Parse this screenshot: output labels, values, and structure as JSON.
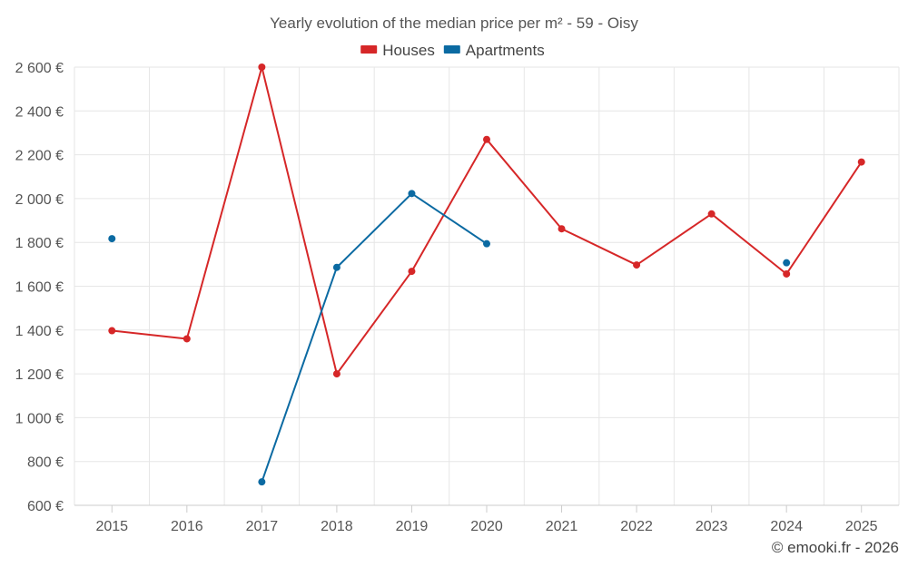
{
  "chart_data": {
    "type": "line",
    "title": "Yearly evolution of the median price per m² - 59 - Oisy",
    "x": [
      "2015",
      "2016",
      "2017",
      "2018",
      "2019",
      "2020",
      "2021",
      "2022",
      "2023",
      "2024",
      "2025"
    ],
    "ylim": [
      600,
      2600
    ],
    "yticks": [
      600,
      800,
      1000,
      1200,
      1400,
      1600,
      1800,
      2000,
      2200,
      2400,
      2600
    ],
    "ytick_labels": [
      "600 €",
      "800 €",
      "1 000 €",
      "1 200 €",
      "1 400 €",
      "1 600 €",
      "1 800 €",
      "2 000 €",
      "2 200 €",
      "2 400 €",
      "2 600 €"
    ],
    "grid": true,
    "legend_position": "top-center",
    "series": [
      {
        "name": "Houses",
        "color": "#d62728",
        "values": [
          1397,
          1360,
          2600,
          1200,
          1668,
          2270,
          1862,
          1697,
          1930,
          1656,
          2167
        ]
      },
      {
        "name": "Apartments",
        "color": "#0b6aa2",
        "values": [
          1817,
          null,
          707,
          1686,
          2023,
          1794,
          null,
          null,
          null,
          1707,
          null
        ]
      }
    ]
  },
  "footer": "© emooki.fr - 2026"
}
